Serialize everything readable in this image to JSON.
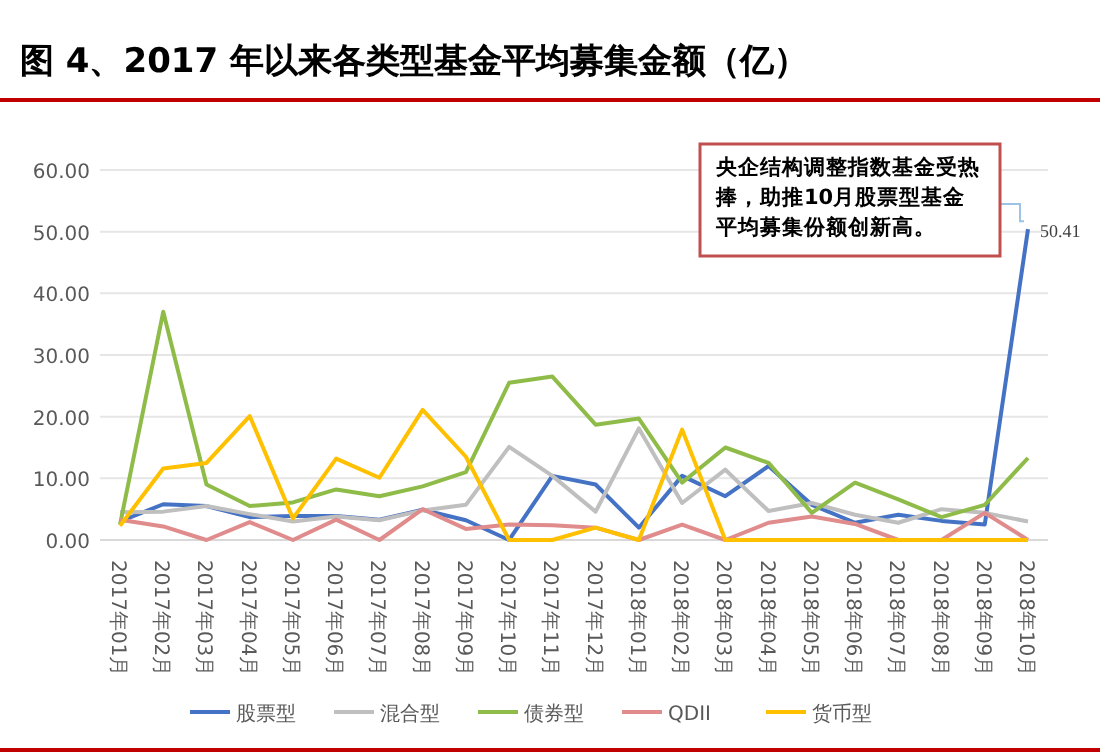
{
  "chart_data": {
    "type": "line",
    "title": "图 4、2017 年以来各类型基金平均募集金额（亿）",
    "categories": [
      "2017年01月",
      "2017年02月",
      "2017年03月",
      "2017年04月",
      "2017年05月",
      "2017年06月",
      "2017年07月",
      "2017年08月",
      "2017年09月",
      "2017年10月",
      "2017年11月",
      "2017年12月",
      "2018年01月",
      "2018年02月",
      "2018年03月",
      "2018年04月",
      "2018年05月",
      "2018年06月",
      "2018年07月",
      "2018年08月",
      "2018年09月",
      "2018年10月"
    ],
    "series": [
      {
        "name": "股票型",
        "color": "#4472c4",
        "values": [
          3,
          5.8,
          5.5,
          3.7,
          3.9,
          3.9,
          3.3,
          4.9,
          3.2,
          0,
          10.4,
          9.0,
          2.0,
          10.4,
          7.1,
          12.0,
          5.7,
          2.8,
          4.1,
          3.1,
          2.5,
          50.41
        ],
        "value_labels": [
          null,
          null,
          null,
          null,
          null,
          null,
          null,
          null,
          null,
          null,
          null,
          null,
          null,
          null,
          null,
          null,
          null,
          null,
          null,
          null,
          null,
          "50.41"
        ]
      },
      {
        "name": "混合型",
        "color": "#bfbfbf",
        "values": [
          4.5,
          4.6,
          5.5,
          4.2,
          3.0,
          3.8,
          3.2,
          4.8,
          5.7,
          15.1,
          10.4,
          4.6,
          18.1,
          6.0,
          11.4,
          4.7,
          6.0,
          4.1,
          2.8,
          5.0,
          4.4,
          3.0
        ]
      },
      {
        "name": "债券型",
        "color": "#8fbc48",
        "values": [
          2.5,
          37,
          9,
          5.5,
          6.1,
          8.2,
          7.1,
          8.7,
          11,
          25.5,
          26.5,
          18.7,
          19.7,
          9.3,
          15,
          12.5,
          4.4,
          9.3,
          6.6,
          3.7,
          5.7,
          13.3
        ]
      },
      {
        "name": "QDII",
        "color": "#e08c8c",
        "values": [
          3.3,
          2.2,
          0,
          2.9,
          0,
          3.3,
          0,
          5.0,
          1.8,
          2.5,
          2.4,
          2.0,
          0,
          2.5,
          0,
          2.8,
          3.8,
          2.6,
          0,
          0,
          4.4,
          0
        ]
      },
      {
        "name": "货币型",
        "color": "#ffc000",
        "values": [
          2.3,
          11.6,
          12.5,
          20.1,
          3.5,
          13.2,
          10.1,
          21.1,
          13.5,
          0,
          0,
          2.0,
          0,
          17.9,
          0,
          0,
          0,
          0,
          0,
          0,
          0,
          0
        ]
      }
    ],
    "ylim": [
      0,
      60
    ],
    "yticks": [
      {
        "value": 0,
        "label": "0.00"
      },
      {
        "value": 10,
        "label": "10.00"
      },
      {
        "value": 20,
        "label": "20.00"
      },
      {
        "value": 30,
        "label": "30.00"
      },
      {
        "value": 40,
        "label": "40.00"
      },
      {
        "value": 50,
        "label": "50.00"
      },
      {
        "value": 60,
        "label": "60.00"
      }
    ],
    "grid": "y",
    "legend": "bottom",
    "marker": "none",
    "line_style": "solid",
    "annotations": [
      {
        "text": "央企结构调整指数基金受热捧，助推10月股票型基金平均募集份额创新高。",
        "x": "2018年10月",
        "y": 50.41
      }
    ]
  }
}
